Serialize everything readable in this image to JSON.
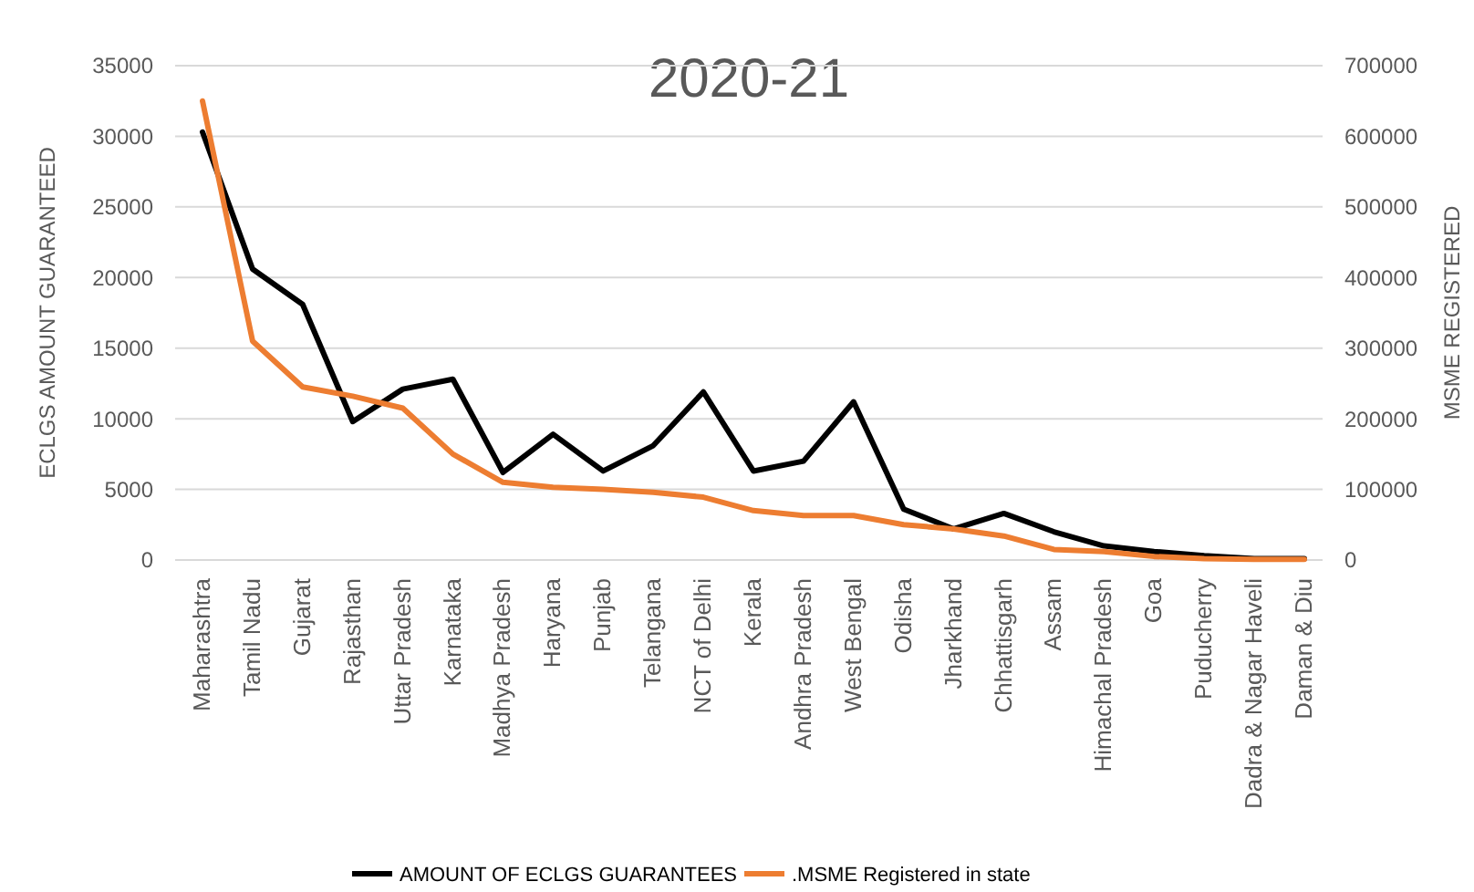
{
  "chart_data": {
    "type": "line",
    "title": "2020-21",
    "ylabel": "ECLGS AMOUNT GUARANTEED",
    "y2label": "MSME REGISTERED",
    "categories": [
      "Maharashtra",
      "Tamil Nadu",
      "Gujarat",
      "Rajasthan",
      "Uttar Pradesh",
      "Karnataka",
      "Madhya Pradesh",
      "Haryana",
      "Punjab",
      "Telangana",
      "NCT of Delhi",
      "Kerala",
      "Andhra Pradesh",
      "West Bengal",
      "Odisha",
      "Jharkhand",
      "Chhattisgarh",
      "Assam",
      "Himachal Pradesh",
      "Goa",
      "Puducherry",
      "Dadra & Nagar Haveli",
      "Daman & Diu"
    ],
    "series": [
      {
        "name": "AMOUNT OF ECLGS GUARANTEES",
        "color": "#000000",
        "values": [
          30300,
          20600,
          18100,
          9800,
          12100,
          12800,
          6200,
          8900,
          6300,
          8100,
          11900,
          6300,
          7000,
          11200,
          3600,
          2200,
          3300,
          2000,
          1000,
          600,
          300,
          100,
          100
        ]
      },
      {
        "name": ".MSME Registered in state",
        "color": "#ed7d31",
        "axis": "y2",
        "values": [
          650000,
          310000,
          245000,
          232000,
          215000,
          150000,
          110000,
          103000,
          100000,
          96000,
          89000,
          70000,
          63000,
          63000,
          50000,
          44000,
          34000,
          15000,
          12000,
          5000,
          2000,
          1000,
          1000
        ]
      }
    ],
    "ylim": [
      0,
      35000
    ],
    "yticks": [
      0,
      5000,
      10000,
      15000,
      20000,
      25000,
      30000,
      35000
    ],
    "y2lim": [
      0,
      700000
    ],
    "y2ticks": [
      0,
      100000,
      200000,
      300000,
      400000,
      500000,
      600000,
      700000
    ],
    "grid": "y",
    "legend": "bottom",
    "marker": "none",
    "line_style": "solid"
  }
}
